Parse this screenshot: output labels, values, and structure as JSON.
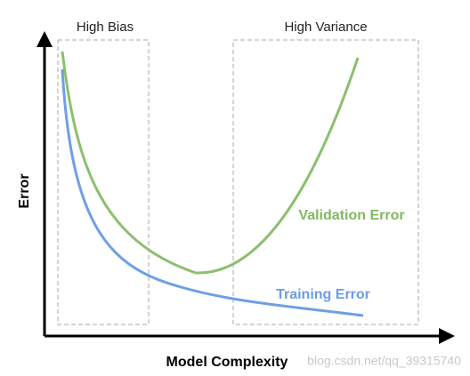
{
  "labels": {
    "high_bias": "High Bias",
    "high_variance": "High Variance",
    "y_axis": "Error",
    "x_axis": "Model Complexity",
    "validation": "Validation Error",
    "training": "Training Error",
    "watermark": "blog.csdn.net/qq_39315740"
  }
}
